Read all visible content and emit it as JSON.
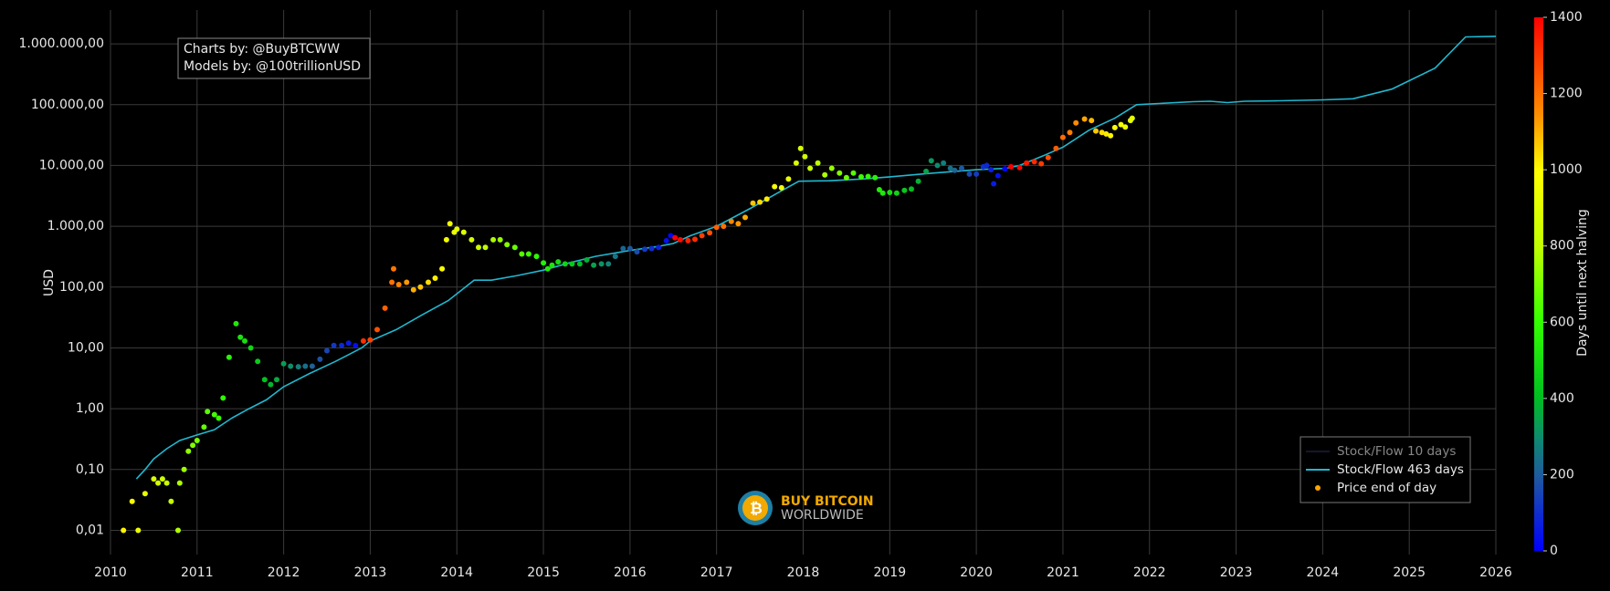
{
  "chart_data": {
    "type": "scatter",
    "log_y": true,
    "grid": true,
    "y_label": "USD",
    "annotations": [
      "Charts by: @BuyBTCWW",
      "Models by: @100trillionUSD"
    ],
    "logo": {
      "title": "BUY BITCOIN",
      "subtitle": "WORLDWIDE"
    },
    "legend": "bottom-right",
    "xlim": [
      2010,
      2026
    ],
    "xticks": [
      2010,
      2011,
      2012,
      2013,
      2014,
      2015,
      2016,
      2017,
      2018,
      2019,
      2020,
      2021,
      2022,
      2023,
      2024,
      2025,
      2026
    ],
    "ylim": [
      0.004,
      3600000
    ],
    "yticks": [
      {
        "value": 0.01,
        "label": "0,01"
      },
      {
        "value": 0.1,
        "label": "0,10"
      },
      {
        "value": 1,
        "label": "1,00"
      },
      {
        "value": 10,
        "label": "10,00"
      },
      {
        "value": 100,
        "label": "100,00"
      },
      {
        "value": 1000,
        "label": "1.000,00"
      },
      {
        "value": 10000,
        "label": "10.000,00"
      },
      {
        "value": 100000,
        "label": "100.000,00"
      },
      {
        "value": 1000000,
        "label": "1.000.000,00"
      }
    ],
    "series": [
      {
        "name": "Stock/Flow 10 days",
        "type": "line",
        "color": "#2a2d5c",
        "visible": false
      },
      {
        "name": "Stock/Flow 463 days",
        "type": "line",
        "color": "#1fb8d0",
        "visible": true,
        "x": [
          2010.3,
          2010.4,
          2010.5,
          2010.65,
          2010.8,
          2011.0,
          2011.2,
          2011.4,
          2011.6,
          2011.8,
          2012.0,
          2012.3,
          2012.6,
          2012.9,
          2013.0,
          2013.3,
          2013.6,
          2013.9,
          2014.2,
          2014.4,
          2014.7,
          2015.0,
          2015.3,
          2015.6,
          2016.0,
          2016.3,
          2016.5,
          2016.7,
          2017.0,
          2017.4,
          2017.7,
          2017.95,
          2018.3,
          2018.7,
          2019.0,
          2019.5,
          2020.0,
          2020.35,
          2020.5,
          2020.8,
          2021.0,
          2021.3,
          2021.6,
          2021.85,
          2022.5,
          2022.7,
          2022.9,
          2023.1,
          2023.5,
          2024.0,
          2024.35,
          2024.8,
          2025.3,
          2025.65,
          2026.0
        ],
        "values": [
          0.07,
          0.1,
          0.15,
          0.22,
          0.3,
          0.37,
          0.45,
          0.7,
          1.0,
          1.4,
          2.3,
          3.8,
          6,
          10,
          13,
          20,
          35,
          60,
          130,
          130,
          155,
          190,
          250,
          320,
          400,
          460,
          520,
          700,
          1000,
          2000,
          3500,
          5500,
          5600,
          6000,
          6500,
          7500,
          8500,
          9000,
          10000,
          15000,
          20000,
          38000,
          60000,
          100000,
          112000,
          114000,
          108000,
          114000,
          116000,
          120000,
          125000,
          180000,
          400000,
          1300000,
          1330000
        ]
      },
      {
        "name": "Price end of day",
        "type": "scatter",
        "color": "#ffa500",
        "visible": true,
        "x": [
          2010.15,
          2010.25,
          2010.32,
          2010.4,
          2010.5,
          2010.55,
          2010.6,
          2010.65,
          2010.7,
          2010.78,
          2010.8,
          2010.85,
          2010.9,
          2010.95,
          2011.0,
          2011.08,
          2011.12,
          2011.2,
          2011.25,
          2011.3,
          2011.37,
          2011.45,
          2011.5,
          2011.55,
          2011.62,
          2011.7,
          2011.78,
          2011.85,
          2011.92,
          2012.0,
          2012.08,
          2012.17,
          2012.25,
          2012.33,
          2012.42,
          2012.5,
          2012.58,
          2012.67,
          2012.75,
          2012.83,
          2012.92,
          2013.0,
          2013.08,
          2013.17,
          2013.25,
          2013.27,
          2013.33,
          2013.42,
          2013.5,
          2013.58,
          2013.67,
          2013.75,
          2013.83,
          2013.88,
          2013.92,
          2013.97,
          2014.0,
          2014.08,
          2014.17,
          2014.25,
          2014.33,
          2014.42,
          2014.5,
          2014.58,
          2014.67,
          2014.75,
          2014.83,
          2014.92,
          2015.0,
          2015.05,
          2015.1,
          2015.17,
          2015.25,
          2015.33,
          2015.42,
          2015.5,
          2015.58,
          2015.67,
          2015.75,
          2015.83,
          2015.92,
          2016.0,
          2016.08,
          2016.17,
          2016.25,
          2016.33,
          2016.42,
          2016.47,
          2016.52,
          2016.58,
          2016.67,
          2016.75,
          2016.83,
          2016.92,
          2017.0,
          2017.08,
          2017.17,
          2017.25,
          2017.33,
          2017.42,
          2017.5,
          2017.58,
          2017.67,
          2017.75,
          2017.83,
          2017.92,
          2017.97,
          2018.02,
          2018.08,
          2018.17,
          2018.25,
          2018.33,
          2018.42,
          2018.5,
          2018.58,
          2018.67,
          2018.75,
          2018.83,
          2018.88,
          2018.92,
          2019.0,
          2019.08,
          2019.17,
          2019.25,
          2019.33,
          2019.42,
          2019.48,
          2019.55,
          2019.62,
          2019.7,
          2019.75,
          2019.83,
          2019.92,
          2020.0,
          2020.08,
          2020.12,
          2020.17,
          2020.2,
          2020.25,
          2020.33,
          2020.4,
          2020.5,
          2020.58,
          2020.67,
          2020.75,
          2020.83,
          2020.92,
          2021.0,
          2021.08,
          2021.15,
          2021.25,
          2021.33,
          2021.38,
          2021.45,
          2021.5,
          2021.55,
          2021.6,
          2021.67,
          2021.72,
          2021.78,
          2021.8
        ],
        "values": [
          0.01,
          0.03,
          0.01,
          0.04,
          0.07,
          0.06,
          0.07,
          0.06,
          0.03,
          0.01,
          0.06,
          0.1,
          0.2,
          0.25,
          0.3,
          0.5,
          0.9,
          0.8,
          0.7,
          1.5,
          7,
          25,
          15,
          13,
          10,
          6,
          3,
          2.5,
          3,
          5.5,
          5,
          4.9,
          5,
          5,
          6.5,
          9,
          11,
          11,
          12,
          11,
          13,
          13.5,
          20,
          45,
          120,
          200,
          110,
          120,
          90,
          100,
          120,
          140,
          200,
          600,
          1100,
          800,
          900,
          800,
          600,
          450,
          450,
          600,
          600,
          500,
          450,
          350,
          350,
          320,
          250,
          200,
          230,
          260,
          240,
          240,
          240,
          280,
          230,
          240,
          240,
          320,
          430,
          430,
          380,
          420,
          430,
          450,
          580,
          700,
          650,
          600,
          580,
          610,
          700,
          780,
          960,
          1000,
          1200,
          1100,
          1400,
          2400,
          2500,
          2800,
          4500,
          4300,
          6000,
          11000,
          19000,
          14000,
          9000,
          11000,
          7000,
          9000,
          7500,
          6300,
          7500,
          6500,
          6600,
          6300,
          4000,
          3500,
          3600,
          3500,
          3900,
          4100,
          5500,
          8000,
          12000,
          10000,
          11000,
          9000,
          8300,
          9000,
          7200,
          7200,
          9500,
          10000,
          8500,
          5000,
          6800,
          8800,
          9500,
          9200,
          11000,
          11500,
          10700,
          13500,
          19000,
          29000,
          35000,
          50000,
          58000,
          55000,
          37000,
          35000,
          33000,
          31000,
          42000,
          47000,
          43000,
          55000,
          60000
        ],
        "color_values": [
          1007,
          971,
          945,
          916,
          880,
          861,
          843,
          825,
          807,
          777,
          770,
          752,
          734,
          715,
          697,
          668,
          653,
          624,
          606,
          588,
          562,
          533,
          515,
          496,
          471,
          442,
          412,
          387,
          361,
          332,
          303,
          270,
          241,
          212,
          179,
          150,
          120,
          88,
          58,
          29,
          1314,
          1285,
          1256,
          1223,
          1194,
          1186,
          1164,
          1132,
          1102,
          1073,
          1040,
          1011,
          982,
          964,
          949,
          931,
          920,
          891,
          858,
          829,
          799,
          767,
          737,
          708,
          675,
          646,
          617,
          584,
          555,
          537,
          518,
          493,
          464,
          434,
          402,
          372,
          343,
          310,
          281,
          252,
          219,
          190,
          161,
          128,
          99,
          69,
          37,
          18,
          1400,
          1380,
          1347,
          1318,
          1288,
          1256,
          1226,
          1197,
          1164,
          1135,
          1106,
          1073,
          1044,
          1015,
          982,
          953,
          923,
          891,
          872,
          854,
          832,
          799,
          770,
          741,
          708,
          679,
          650,
          617,
          588,
          558,
          540,
          526,
          496,
          467,
          434,
          405,
          376,
          343,
          321,
          296,
          270,
          241,
          223,
          193,
          161,
          131,
          102,
          88,
          69,
          58,
          40,
          11,
          1424,
          1387,
          1358,
          1325,
          1296,
          1267,
          1234,
          1205,
          1175,
          1150,
          1113,
          1084,
          1066,
          1040,
          1022,
          1004,
          986,
          960,
          942,
          920,
          913
        ]
      }
    ],
    "colorbar": {
      "title": "Days until next halving",
      "lim": [
        0,
        1400
      ],
      "ticks": [
        0,
        200,
        400,
        600,
        800,
        1000,
        1200,
        1400
      ],
      "colorscale": [
        [
          0,
          "#0000ff"
        ],
        [
          0.14,
          "#1f5a9e"
        ],
        [
          0.21,
          "#0e8a70"
        ],
        [
          0.29,
          "#00c020"
        ],
        [
          0.43,
          "#33ff00"
        ],
        [
          0.57,
          "#c0ff00"
        ],
        [
          0.71,
          "#ffff00"
        ],
        [
          0.82,
          "#ff8c00"
        ],
        [
          1,
          "#ff0000"
        ]
      ]
    }
  }
}
